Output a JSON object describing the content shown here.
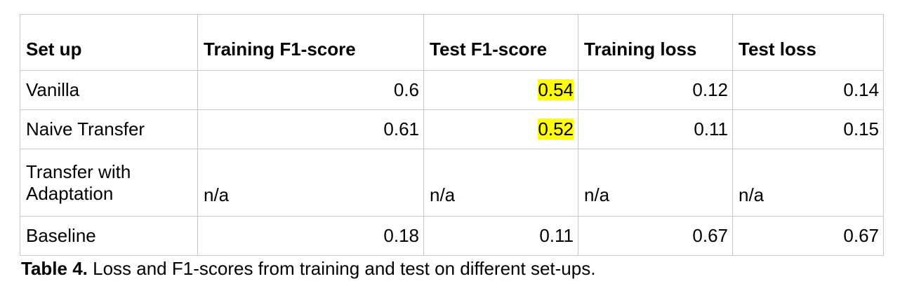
{
  "table": {
    "headers": [
      "Set up",
      "Training F1-score",
      "Test F1-score",
      "Training loss",
      "Test loss"
    ],
    "rows": [
      {
        "setup": "Vanilla",
        "train_f1": "0.6",
        "test_f1": "0.54",
        "train_loss": "0.12",
        "test_loss": "0.14"
      },
      {
        "setup": "Naive Transfer",
        "train_f1": "0.61",
        "test_f1": "0.52",
        "train_loss": "0.11",
        "test_loss": "0.15"
      },
      {
        "setup_line1": "Transfer with",
        "setup_line2": "Adaptation",
        "train_f1": "n/a",
        "test_f1": "n/a",
        "train_loss": "n/a",
        "test_loss": "n/a"
      },
      {
        "setup": "Baseline",
        "train_f1": "0.18",
        "test_f1": "0.11",
        "train_loss": "0.67",
        "test_loss": "0.67"
      }
    ],
    "highlight_color": "#ffff00"
  },
  "caption": {
    "label": "Table 4.",
    "text": " Loss and F1-scores from training and test on different set-ups."
  }
}
